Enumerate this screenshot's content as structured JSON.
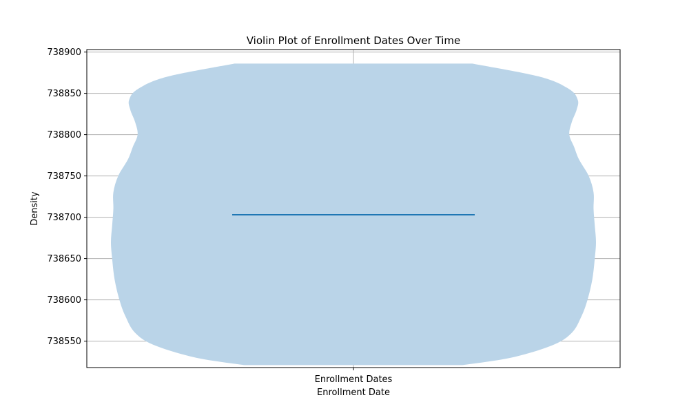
{
  "chart_data": {
    "type": "violin",
    "title": "Violin Plot of Enrollment Dates Over Time",
    "xlabel": "Enrollment Date",
    "ylabel": "Density",
    "categories": [
      "Enrollment Dates"
    ],
    "ylim": [
      738518,
      738903
    ],
    "yticks": [
      738550,
      738600,
      738650,
      738700,
      738750,
      738800,
      738850,
      738900
    ],
    "grid": true,
    "series": [
      {
        "category": "Enrollment Dates",
        "min": 738521,
        "max": 738886,
        "mean": 738703,
        "profile": [
          {
            "y": 738521,
            "width": 0.45
          },
          {
            "y": 738530,
            "width": 0.65
          },
          {
            "y": 738545,
            "width": 0.82
          },
          {
            "y": 738560,
            "width": 0.9
          },
          {
            "y": 738580,
            "width": 0.94
          },
          {
            "y": 738600,
            "width": 0.965
          },
          {
            "y": 738625,
            "width": 0.985
          },
          {
            "y": 738650,
            "width": 0.995
          },
          {
            "y": 738670,
            "width": 1.0
          },
          {
            "y": 738690,
            "width": 0.995
          },
          {
            "y": 738710,
            "width": 0.99
          },
          {
            "y": 738730,
            "width": 0.99
          },
          {
            "y": 738750,
            "width": 0.97
          },
          {
            "y": 738770,
            "width": 0.93
          },
          {
            "y": 738785,
            "width": 0.91
          },
          {
            "y": 738800,
            "width": 0.89
          },
          {
            "y": 738815,
            "width": 0.9
          },
          {
            "y": 738830,
            "width": 0.92
          },
          {
            "y": 738842,
            "width": 0.925
          },
          {
            "y": 738855,
            "width": 0.89
          },
          {
            "y": 738870,
            "width": 0.77
          },
          {
            "y": 738886,
            "width": 0.49
          }
        ]
      }
    ],
    "colors": {
      "violin_fill": "#bad4e8",
      "mean_line": "#1f77b4",
      "grid": "#b0b0b0"
    }
  }
}
